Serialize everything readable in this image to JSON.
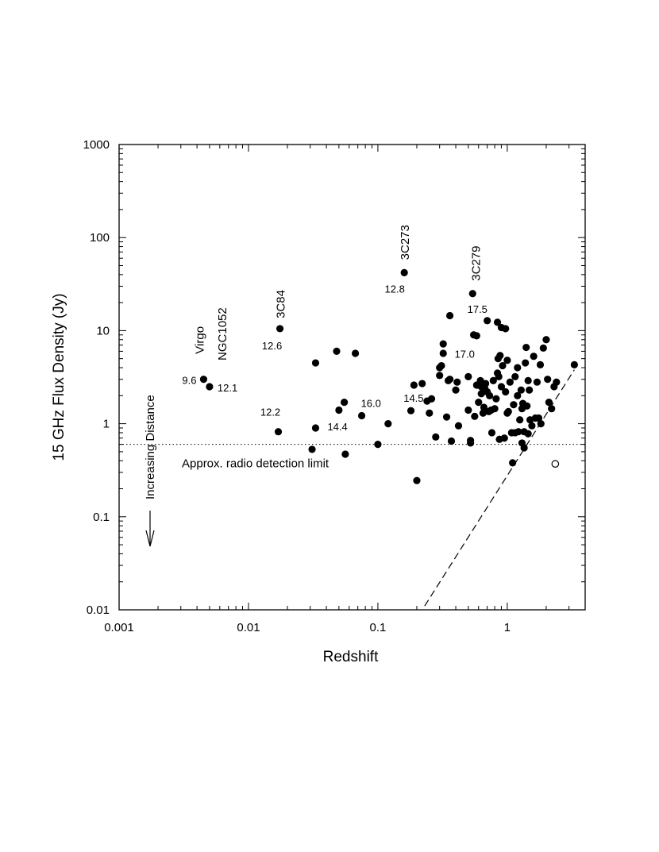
{
  "chart_data": {
    "type": "scatter",
    "title": "",
    "xlabel": "Redshift",
    "ylabel": "15 GHz Flux Density (Jy)",
    "xscale": "log",
    "yscale": "log",
    "xlim": [
      0.001,
      4
    ],
    "ylim": [
      0.01,
      1000
    ],
    "xticks": [
      {
        "value": 0.001,
        "label": "0.001"
      },
      {
        "value": 0.01,
        "label": "0.01"
      },
      {
        "value": 0.1,
        "label": "0.1"
      },
      {
        "value": 1,
        "label": "1"
      }
    ],
    "yticks": [
      {
        "value": 0.01,
        "label": "0.01"
      },
      {
        "value": 0.1,
        "label": "0.1"
      },
      {
        "value": 1,
        "label": "1"
      },
      {
        "value": 10,
        "label": "10"
      },
      {
        "value": 100,
        "label": "100"
      },
      {
        "value": 1000,
        "label": "1000"
      }
    ],
    "grid": false,
    "detection_limit": {
      "y": 0.6,
      "label": "Approx. radio detection limit"
    },
    "selection_line": {
      "x": [
        0.23,
        3.3
      ],
      "y": [
        0.011,
        3.8
      ],
      "style": "dashed"
    },
    "distance_arrow_label": "Increasing Distance",
    "filled_points": [
      [
        0.0045,
        3.0
      ],
      [
        0.005,
        2.5
      ],
      [
        0.017,
        0.82
      ],
      [
        0.0175,
        10.5
      ],
      [
        0.16,
        42.0
      ],
      [
        0.54,
        25.0
      ],
      [
        0.031,
        0.53
      ],
      [
        0.033,
        4.5
      ],
      [
        0.033,
        0.9
      ],
      [
        0.048,
        6.0
      ],
      [
        0.05,
        1.4
      ],
      [
        0.055,
        1.7
      ],
      [
        0.056,
        0.47
      ],
      [
        0.067,
        5.7
      ],
      [
        0.075,
        1.22
      ],
      [
        0.1,
        0.6
      ],
      [
        0.12,
        1.0
      ],
      [
        0.18,
        1.38
      ],
      [
        0.19,
        2.6
      ],
      [
        0.2,
        0.245
      ],
      [
        0.22,
        2.7
      ],
      [
        0.24,
        1.75
      ],
      [
        0.25,
        1.3
      ],
      [
        0.26,
        1.85
      ],
      [
        0.28,
        0.72
      ],
      [
        0.3,
        3.3
      ],
      [
        0.3,
        4.0
      ],
      [
        0.31,
        4.2
      ],
      [
        0.32,
        5.7
      ],
      [
        0.32,
        7.2
      ],
      [
        0.34,
        1.18
      ],
      [
        0.35,
        2.9
      ],
      [
        0.36,
        3.0
      ],
      [
        0.36,
        14.5
      ],
      [
        0.37,
        0.65
      ],
      [
        0.4,
        2.3
      ],
      [
        0.41,
        2.8
      ],
      [
        0.42,
        0.95
      ],
      [
        0.5,
        3.2
      ],
      [
        0.5,
        1.4
      ],
      [
        0.52,
        0.66
      ],
      [
        0.52,
        0.62
      ],
      [
        0.55,
        9.0
      ],
      [
        0.56,
        1.2
      ],
      [
        0.58,
        2.6
      ],
      [
        0.58,
        8.8
      ],
      [
        0.6,
        1.7
      ],
      [
        0.62,
        2.9
      ],
      [
        0.63,
        2.5
      ],
      [
        0.63,
        2.1
      ],
      [
        0.65,
        1.3
      ],
      [
        0.66,
        1.5
      ],
      [
        0.67,
        2.4
      ],
      [
        0.68,
        2.7
      ],
      [
        0.7,
        12.8
      ],
      [
        0.7,
        2.2
      ],
      [
        0.72,
        1.35
      ],
      [
        0.73,
        2.0
      ],
      [
        0.75,
        1.4
      ],
      [
        0.76,
        0.8
      ],
      [
        0.78,
        2.9
      ],
      [
        0.8,
        1.45
      ],
      [
        0.82,
        1.85
      ],
      [
        0.84,
        12.3
      ],
      [
        0.84,
        3.5
      ],
      [
        0.85,
        5.0
      ],
      [
        0.86,
        3.2
      ],
      [
        0.87,
        0.68
      ],
      [
        0.88,
        5.4
      ],
      [
        0.9,
        10.8
      ],
      [
        0.9,
        2.5
      ],
      [
        0.92,
        4.2
      ],
      [
        0.95,
        0.7
      ],
      [
        0.97,
        10.5
      ],
      [
        0.97,
        2.2
      ],
      [
        1.0,
        4.8
      ],
      [
        1.0,
        1.3
      ],
      [
        1.02,
        1.35
      ],
      [
        1.05,
        2.8
      ],
      [
        1.08,
        0.8
      ],
      [
        1.1,
        0.38
      ],
      [
        1.12,
        1.6
      ],
      [
        1.15,
        3.2
      ],
      [
        1.15,
        0.8
      ],
      [
        1.2,
        2.0
      ],
      [
        1.2,
        4.0
      ],
      [
        1.22,
        0.82
      ],
      [
        1.25,
        1.1
      ],
      [
        1.28,
        2.3
      ],
      [
        1.3,
        0.62
      ],
      [
        1.3,
        1.45
      ],
      [
        1.32,
        1.65
      ],
      [
        1.35,
        0.55
      ],
      [
        1.35,
        0.82
      ],
      [
        1.38,
        4.5
      ],
      [
        1.4,
        6.6
      ],
      [
        1.42,
        1.55
      ],
      [
        1.45,
        2.9
      ],
      [
        1.45,
        0.78
      ],
      [
        1.48,
        2.3
      ],
      [
        1.5,
        1.1
      ],
      [
        1.55,
        0.95
      ],
      [
        1.6,
        5.3
      ],
      [
        1.65,
        1.15
      ],
      [
        1.7,
        2.8
      ],
      [
        1.75,
        1.15
      ],
      [
        1.8,
        4.3
      ],
      [
        1.82,
        1.0
      ],
      [
        1.9,
        6.5
      ],
      [
        2.0,
        8.0
      ],
      [
        2.05,
        3.0
      ],
      [
        2.1,
        1.7
      ],
      [
        2.2,
        1.45
      ],
      [
        2.3,
        2.5
      ],
      [
        2.4,
        2.8
      ],
      [
        3.3,
        4.3
      ]
    ],
    "open_points": [
      [
        2.35,
        0.37
      ]
    ],
    "annotations": [
      {
        "text": "9.6",
        "x": 0.0045,
        "y": 3.0,
        "anchor": "end",
        "dx": -9,
        "dy": 6,
        "rotate": false,
        "cls": "annot"
      },
      {
        "text": "12.1",
        "x": 0.005,
        "y": 2.5,
        "anchor": "start",
        "dx": 10,
        "dy": 6,
        "rotate": false,
        "cls": "annot"
      },
      {
        "text": "12.2",
        "x": 0.017,
        "y": 0.82,
        "anchor": "middle",
        "dx": -10,
        "dy": -20,
        "rotate": false,
        "cls": "annot"
      },
      {
        "text": "12.6",
        "x": 0.0175,
        "y": 10.5,
        "anchor": "middle",
        "dx": -10,
        "dy": 26,
        "rotate": false,
        "cls": "annot"
      },
      {
        "text": "14.4",
        "x": 0.033,
        "y": 0.9,
        "anchor": "start",
        "dx": 15,
        "dy": 3,
        "rotate": false,
        "cls": "annot"
      },
      {
        "text": "16.0",
        "x": 0.075,
        "y": 1.22,
        "anchor": "start",
        "dx": -1,
        "dy": -11,
        "rotate": false,
        "cls": "annot"
      },
      {
        "text": "12.8",
        "x": 0.16,
        "y": 42.0,
        "anchor": "middle",
        "dx": -12,
        "dy": 25,
        "rotate": false,
        "cls": "annot"
      },
      {
        "text": "14.5",
        "x": 0.24,
        "y": 1.75,
        "anchor": "middle",
        "dx": -17,
        "dy": 1,
        "rotate": false,
        "cls": "annot"
      },
      {
        "text": "17.0",
        "x": 0.36,
        "y": 3.0,
        "anchor": "start",
        "dx": 6,
        "dy": -27,
        "rotate": false,
        "cls": "annot"
      },
      {
        "text": "17.5",
        "x": 0.54,
        "y": 25.0,
        "anchor": "middle",
        "dx": 6,
        "dy": 24,
        "rotate": false,
        "cls": "annot"
      },
      {
        "text": "Virgo",
        "x": 0.0045,
        "y": 3.0,
        "anchor": "start",
        "dx": 0,
        "dy": -32,
        "rotate": true,
        "cls": "src-label"
      },
      {
        "text": "NGC1052",
        "x": 0.005,
        "y": 2.5,
        "anchor": "start",
        "dx": 21,
        "dy": -33,
        "rotate": true,
        "cls": "src-label"
      },
      {
        "text": "3C84",
        "x": 0.0175,
        "y": 10.5,
        "anchor": "start",
        "dx": 6,
        "dy": -13,
        "rotate": true,
        "cls": "src-label"
      },
      {
        "text": "3C273",
        "x": 0.16,
        "y": 42.0,
        "anchor": "start",
        "dx": 6,
        "dy": -16,
        "rotate": true,
        "cls": "src-label"
      },
      {
        "text": "3C279",
        "x": 0.54,
        "y": 25.0,
        "anchor": "start",
        "dx": 9,
        "dy": -16,
        "rotate": true,
        "cls": "src-label"
      }
    ]
  }
}
